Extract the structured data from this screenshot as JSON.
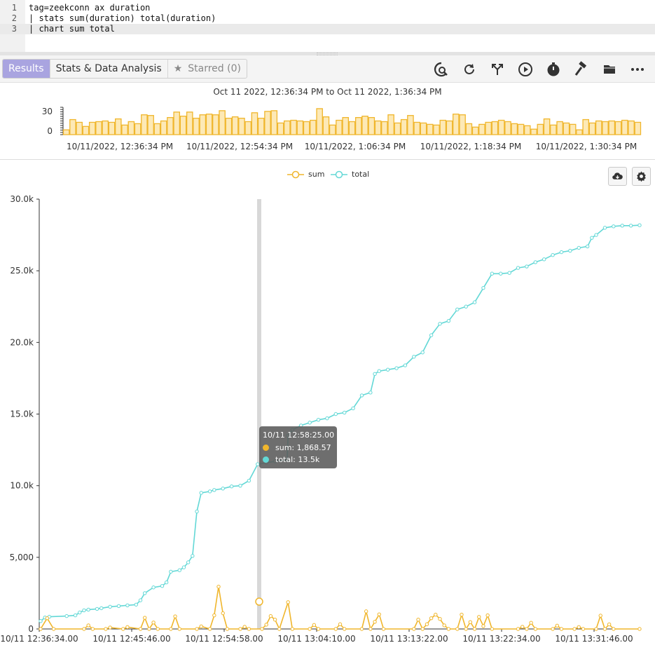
{
  "editor": {
    "lines": [
      {
        "num": "1",
        "text": "tag=zeekconn ax duration"
      },
      {
        "num": "2",
        "text": "| stats sum(duration) total(duration)"
      },
      {
        "num": "3",
        "text": "| chart sum total"
      }
    ]
  },
  "toolbar": {
    "tabs": [
      {
        "label": "Results",
        "active": true
      },
      {
        "label": "Stats & Data Analysis",
        "active": false
      },
      {
        "label": "Starred (0)",
        "active": false,
        "icon": "star-icon"
      }
    ],
    "icons": [
      "search-history-icon",
      "refresh-icon",
      "fork-icon",
      "play-icon",
      "timer-icon",
      "hammer-icon",
      "folder-icon",
      "more-icon"
    ]
  },
  "histogram": {
    "range_text": "Oct 11 2022, 12:36:34 PM to Oct 11 2022, 1:36:34 PM",
    "y_ticks": [
      "30",
      "0"
    ],
    "x_ticks": [
      "10/11/2022, 12:36:34 PM",
      "10/11/2022, 12:54:34 PM",
      "10/11/2022, 1:06:34 PM",
      "10/11/2022, 1:18:34 PM",
      "10/11/2022, 1:30:34 PM"
    ],
    "color": "#f0b62c",
    "fill": "#fde9b6",
    "values": [
      7,
      22,
      18,
      12,
      18,
      19,
      20,
      18,
      23,
      14,
      19,
      16,
      29,
      28,
      16,
      20,
      25,
      33,
      27,
      33,
      24,
      29,
      30,
      29,
      35,
      24,
      26,
      24,
      19,
      32,
      24,
      34,
      35,
      17,
      20,
      21,
      20,
      19,
      21,
      38,
      26,
      14,
      21,
      25,
      19,
      25,
      27,
      25,
      20,
      19,
      29,
      17,
      22,
      28,
      18,
      17,
      15,
      14,
      21,
      20,
      30,
      29,
      16,
      11,
      15,
      18,
      19,
      21,
      19,
      16,
      15,
      13,
      8,
      15,
      23,
      14,
      19,
      17,
      15,
      7,
      22,
      17,
      20,
      19,
      20,
      19,
      21,
      20,
      18
    ]
  },
  "chart": {
    "legend": [
      {
        "name": "sum",
        "color": "#f0b62c"
      },
      {
        "name": "total",
        "color": "#63d8d6"
      }
    ],
    "buttons": [
      "cloud-download-icon",
      "gear-icon"
    ],
    "tooltip": {
      "title": "10/11 12:58:25.00",
      "rows": [
        {
          "label": "sum: 1,868.57",
          "color": "#f0b62c"
        },
        {
          "label": "total: 13.5k",
          "color": "#63d8d6"
        }
      ]
    }
  },
  "chart_data": {
    "type": "line",
    "x_tick_labels": [
      "10/11 12:36:34.00",
      "10/11 12:45:46.00",
      "10/11 12:54:58.00",
      "10/11 13:04:10.00",
      "10/11 13:13:22.00",
      "10/11 13:22:34.00",
      "10/11 13:31:46.00"
    ],
    "y_tick_labels": [
      "0",
      "5,000",
      "10.0k",
      "15.0k",
      "20.0k",
      "25.0k",
      "30.0k"
    ],
    "ylim": [
      0,
      30000
    ],
    "grid": false,
    "legend_position": "top-center",
    "highlight_x": "10/11 12:58:25.00",
    "series": [
      {
        "name": "sum",
        "color": "#f0b62c",
        "points": [
          [
            0,
            0
          ],
          [
            0.75,
            750
          ],
          [
            1.5,
            0
          ],
          [
            5,
            0
          ],
          [
            5.5,
            250
          ],
          [
            6,
            0
          ],
          [
            7.5,
            0
          ],
          [
            8,
            100
          ],
          [
            9.5,
            0
          ],
          [
            10,
            130
          ],
          [
            11.5,
            0
          ],
          [
            12,
            780
          ],
          [
            12.5,
            0
          ],
          [
            13,
            450
          ],
          [
            13.5,
            0
          ],
          [
            15,
            0
          ],
          [
            15.5,
            880
          ],
          [
            16,
            0
          ],
          [
            18,
            0
          ],
          [
            18.5,
            180
          ],
          [
            19.5,
            0
          ],
          [
            20,
            950
          ],
          [
            20.5,
            2950
          ],
          [
            21,
            1100
          ],
          [
            21.5,
            0
          ],
          [
            23,
            0
          ],
          [
            23.5,
            150
          ],
          [
            24,
            0
          ],
          [
            25.5,
            0
          ],
          [
            26,
            300
          ],
          [
            26.5,
            900
          ],
          [
            27,
            650
          ],
          [
            27.5,
            0
          ],
          [
            28.5,
            1870
          ],
          [
            29,
            0
          ],
          [
            31,
            0
          ],
          [
            31.5,
            280
          ],
          [
            32,
            0
          ],
          [
            34,
            0
          ],
          [
            34.5,
            330
          ],
          [
            35,
            0
          ],
          [
            37,
            0
          ],
          [
            37.5,
            1230
          ],
          [
            38,
            0
          ],
          [
            38.5,
            500
          ],
          [
            39,
            1020
          ],
          [
            39.5,
            0
          ],
          [
            43,
            0
          ],
          [
            43.5,
            650
          ],
          [
            44,
            0
          ],
          [
            44.5,
            330
          ],
          [
            45,
            750
          ],
          [
            45.5,
            1000
          ],
          [
            46,
            700
          ],
          [
            46.5,
            250
          ],
          [
            47,
            0
          ],
          [
            48,
            0
          ],
          [
            48.5,
            1000
          ],
          [
            49,
            0
          ],
          [
            49.5,
            480
          ],
          [
            50,
            0
          ],
          [
            50.5,
            840
          ],
          [
            51,
            200
          ],
          [
            51.5,
            950
          ],
          [
            52,
            0
          ],
          [
            55,
            0
          ],
          [
            55.5,
            150
          ],
          [
            56,
            0
          ],
          [
            56.5,
            430
          ],
          [
            57,
            0
          ],
          [
            59,
            0
          ],
          [
            59.5,
            230
          ],
          [
            60,
            0
          ],
          [
            61.5,
            0
          ],
          [
            62,
            130
          ],
          [
            62.5,
            0
          ],
          [
            64,
            0
          ],
          [
            64.5,
            930
          ],
          [
            65,
            0
          ],
          [
            65.5,
            320
          ],
          [
            66,
            0
          ],
          [
            69,
            0
          ]
        ]
      },
      {
        "name": "total",
        "color": "#63d8d6",
        "points": [
          [
            0,
            550
          ],
          [
            0.5,
            800
          ],
          [
            1,
            850
          ],
          [
            3,
            900
          ],
          [
            4,
            950
          ],
          [
            4.5,
            1150
          ],
          [
            5,
            1300
          ],
          [
            5.5,
            1350
          ],
          [
            6.5,
            1400
          ],
          [
            7,
            1450
          ],
          [
            8,
            1550
          ],
          [
            9,
            1600
          ],
          [
            10,
            1650
          ],
          [
            11,
            1700
          ],
          [
            11.5,
            2000
          ],
          [
            12,
            2500
          ],
          [
            13,
            2900
          ],
          [
            14,
            3000
          ],
          [
            14.5,
            3250
          ],
          [
            15,
            4000
          ],
          [
            16,
            4100
          ],
          [
            16.5,
            4300
          ],
          [
            17,
            4650
          ],
          [
            17.5,
            5100
          ],
          [
            18,
            8200
          ],
          [
            18.5,
            9500
          ],
          [
            19.5,
            9600
          ],
          [
            20,
            9700
          ],
          [
            21,
            9800
          ],
          [
            22,
            9950
          ],
          [
            23,
            10000
          ],
          [
            24,
            10350
          ],
          [
            25,
            11500
          ],
          [
            26,
            11600
          ],
          [
            27,
            11700
          ],
          [
            28.4,
            11800
          ],
          [
            28.5,
            13500
          ],
          [
            29,
            13900
          ],
          [
            30,
            14200
          ],
          [
            31,
            14400
          ],
          [
            32,
            14600
          ],
          [
            33,
            14700
          ],
          [
            34,
            15000
          ],
          [
            35,
            15100
          ],
          [
            36,
            15400
          ],
          [
            37,
            16300
          ],
          [
            38,
            16500
          ],
          [
            38.5,
            17800
          ],
          [
            39,
            18000
          ],
          [
            40,
            18100
          ],
          [
            41,
            18200
          ],
          [
            42,
            18400
          ],
          [
            43,
            19000
          ],
          [
            44,
            19300
          ],
          [
            45,
            20500
          ],
          [
            46,
            21300
          ],
          [
            47,
            21500
          ],
          [
            48,
            22300
          ],
          [
            49,
            22500
          ],
          [
            50,
            22800
          ],
          [
            51,
            23800
          ],
          [
            52,
            24800
          ],
          [
            53,
            24800
          ],
          [
            54,
            24850
          ],
          [
            55,
            25200
          ],
          [
            56,
            25300
          ],
          [
            57,
            25600
          ],
          [
            58,
            25800
          ],
          [
            59,
            26100
          ],
          [
            60,
            26300
          ],
          [
            61,
            26400
          ],
          [
            62,
            26600
          ],
          [
            63,
            26700
          ],
          [
            63.5,
            27300
          ],
          [
            64,
            27500
          ],
          [
            65,
            28000
          ],
          [
            66,
            28100
          ],
          [
            67,
            28150
          ],
          [
            68,
            28150
          ],
          [
            69,
            28180
          ]
        ]
      }
    ]
  }
}
